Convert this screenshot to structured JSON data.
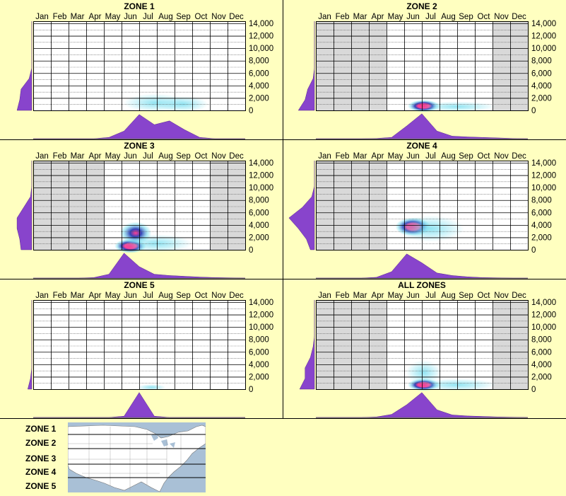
{
  "months": [
    "Jan",
    "Feb",
    "Mar",
    "Apr",
    "May",
    "Jun",
    "Jul",
    "Aug",
    "Sep",
    "Oct",
    "Nov",
    "Dec"
  ],
  "yticks": [
    "14,000",
    "12,000",
    "10,000",
    "8,000",
    "6,000",
    "4,000",
    "2,000",
    "0"
  ],
  "colors": {
    "background": "#ffffc0",
    "grid_fill": "#ffffff",
    "shaded_month": "#d9d9d9",
    "profile": "#8844cc",
    "heat_low": "#7fe0f0",
    "heat_mid": "#1a2fb0",
    "heat_high": "#ff2a8a"
  },
  "chart_data": [
    {
      "type": "heatmap",
      "title": "ZONE 1",
      "ylim": [
        0,
        14000
      ],
      "shaded_months": [],
      "blobs": [
        {
          "month": 7.4,
          "elevation": 1200,
          "intensity": "low",
          "spread_months": 1.8,
          "spread_elev": 900
        },
        {
          "month": 9.0,
          "elevation": 1000,
          "intensity": "low",
          "spread_months": 1.4,
          "spread_elev": 800
        }
      ],
      "month_profile": [
        0,
        0,
        0,
        0,
        0,
        0.05,
        0.3,
        0.95,
        0.55,
        0.7,
        0.35,
        0.05,
        0,
        0,
        0
      ],
      "elevation_profile": [
        0.55,
        0.45,
        0.4,
        0.1,
        0,
        0,
        0,
        0,
        0
      ]
    },
    {
      "type": "heatmap",
      "title": "ZONE 2",
      "ylim": [
        0,
        14000
      ],
      "shaded_months": [
        "Jan",
        "Feb",
        "Mar",
        "Apr",
        "Nov",
        "Dec"
      ],
      "blobs": [
        {
          "month": 6.6,
          "elevation": 700,
          "intensity": "high",
          "spread_months": 0.9,
          "spread_elev": 600
        },
        {
          "month": 8.5,
          "elevation": 600,
          "intensity": "low",
          "spread_months": 2.2,
          "spread_elev": 500
        }
      ],
      "month_profile": [
        0,
        0,
        0,
        0,
        0.01,
        0.05,
        0.5,
        0.98,
        0.3,
        0.1,
        0.07,
        0.05,
        0.03,
        0.01,
        0
      ],
      "elevation_profile": [
        0.6,
        0.35,
        0.25,
        0.05,
        0,
        0,
        0,
        0,
        0
      ]
    },
    {
      "type": "heatmap",
      "title": "ZONE 3",
      "ylim": [
        0,
        14000
      ],
      "shaded_months": [
        "Jan",
        "Feb",
        "Mar",
        "Apr",
        "Nov",
        "Dec"
      ],
      "blobs": [
        {
          "month": 6.0,
          "elevation": 600,
          "intensity": "high",
          "spread_months": 0.9,
          "spread_elev": 700
        },
        {
          "month": 6.3,
          "elevation": 2700,
          "intensity": "mid",
          "spread_months": 0.9,
          "spread_elev": 1100
        },
        {
          "month": 7.5,
          "elevation": 1000,
          "intensity": "low",
          "spread_months": 2.0,
          "spread_elev": 900
        }
      ],
      "month_profile": [
        0,
        0,
        0,
        0,
        0.02,
        0.15,
        0.98,
        0.45,
        0.15,
        0.1,
        0.07,
        0.04,
        0.02,
        0.01,
        0
      ],
      "elevation_profile": [
        0.4,
        0.45,
        0.55,
        0.55,
        0.3,
        0.05,
        0,
        0,
        0
      ]
    },
    {
      "type": "heatmap",
      "title": "ZONE 4",
      "ylim": [
        0,
        14000
      ],
      "shaded_months": [
        "Jan",
        "Feb",
        "Mar",
        "Apr"
      ],
      "blobs": [
        {
          "month": 6.0,
          "elevation": 3700,
          "intensity": "high",
          "spread_months": 1.0,
          "spread_elev": 900
        },
        {
          "month": 7.0,
          "elevation": 3400,
          "intensity": "low",
          "spread_months": 1.9,
          "spread_elev": 1300
        }
      ],
      "month_profile": [
        0,
        0,
        0,
        0,
        0.03,
        0.25,
        0.95,
        0.6,
        0.2,
        0.1,
        0.05,
        0.02,
        0.01,
        0,
        0
      ],
      "elevation_profile": [
        0.15,
        0.3,
        0.6,
        0.95,
        0.45,
        0.1,
        0,
        0,
        0
      ]
    },
    {
      "type": "heatmap",
      "title": "ZONE 5",
      "ylim": [
        0,
        14000
      ],
      "shaded_months": [],
      "blobs": [
        {
          "month": 7.2,
          "elevation": 300,
          "intensity": "low",
          "spread_months": 0.8,
          "spread_elev": 300
        }
      ],
      "month_profile": [
        0,
        0,
        0,
        0,
        0,
        0,
        0.05,
        0.98,
        0.05,
        0,
        0,
        0,
        0,
        0,
        0
      ],
      "elevation_profile": [
        0.15,
        0.05,
        0,
        0,
        0,
        0,
        0,
        0,
        0
      ]
    },
    {
      "type": "heatmap",
      "title": "ALL ZONES",
      "ylim": [
        0,
        14000
      ],
      "shaded_months": [
        "Jan",
        "Feb",
        "Mar",
        "Apr",
        "Nov",
        "Dec"
      ],
      "blobs": [
        {
          "month": 6.6,
          "elevation": 700,
          "intensity": "high",
          "spread_months": 0.9,
          "spread_elev": 600
        },
        {
          "month": 6.6,
          "elevation": 2700,
          "intensity": "low",
          "spread_months": 1.0,
          "spread_elev": 1200
        },
        {
          "month": 8.5,
          "elevation": 700,
          "intensity": "low",
          "spread_months": 2.2,
          "spread_elev": 600
        }
      ],
      "month_profile": [
        0,
        0,
        0,
        0,
        0.02,
        0.12,
        0.5,
        0.98,
        0.3,
        0.1,
        0.06,
        0.04,
        0.02,
        0.01,
        0
      ],
      "elevation_profile": [
        0.55,
        0.35,
        0.35,
        0.15,
        0.05,
        0,
        0,
        0,
        0
      ]
    }
  ],
  "legend": {
    "zones": [
      "ZONE 1",
      "ZONE 2",
      "ZONE 3",
      "ZONE 4",
      "ZONE 5"
    ]
  }
}
